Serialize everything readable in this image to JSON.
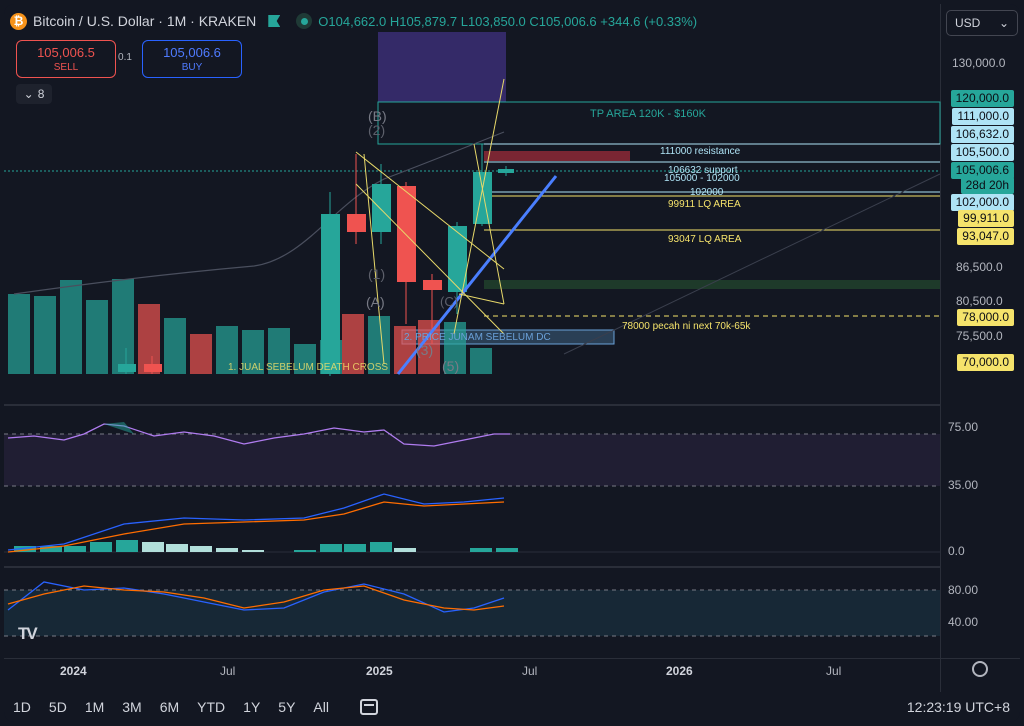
{
  "legend": {
    "title": "Bitcoin / U.S. Dollar · 1M · KRAKEN",
    "btc_glyph": "₿",
    "open": "O104,662.0",
    "high": "H105,879.7",
    "low": "L103,850.0",
    "close": "C105,006.6",
    "change": "+344.6 (+0.33%)"
  },
  "trade": {
    "sell_price": "105,006.5",
    "sell_label": "SELL",
    "buy_price": "105,006.6",
    "buy_label": "BUY",
    "spread": "0.1"
  },
  "collapse": {
    "chevron": "⌄",
    "count": "8"
  },
  "currency": {
    "value": "USD",
    "chevron": "⌄"
  },
  "colors": {
    "up": "#26a69a",
    "down": "#ef5350",
    "bg": "#131722",
    "buy": "#2962ff"
  },
  "price_axis": {
    "ticks": [
      "130,000.0",
      "86,500.0",
      "80,500.0",
      "75,500.0"
    ],
    "labels": [
      {
        "text": "120,000.0",
        "bg": "#26a69a"
      },
      {
        "text": "111,000.0",
        "bg": "#aee3f5"
      },
      {
        "text": "106,632.0",
        "bg": "#aee3f5"
      },
      {
        "text": "105,500.0",
        "bg": "#aee3f5"
      },
      {
        "text": "105,006.6",
        "bg": "#26a69a"
      },
      {
        "text": "28d 20h",
        "bg": "#26a69a"
      },
      {
        "text": "102,000.0",
        "bg": "#aee3f5"
      },
      {
        "text": "99,911.0",
        "bg": "#f5e36b"
      },
      {
        "text": "93,047.0",
        "bg": "#f5e36b"
      },
      {
        "text": "78,000.0",
        "bg": "#f5e36b"
      },
      {
        "text": "70,000.0",
        "bg": "#f5e36b"
      }
    ]
  },
  "annotations": {
    "tp_area": "TP AREA 120K - $160K",
    "resistance": "111000 resistance",
    "support": "106632 support",
    "range": "105000 - 102000",
    "lvl_102": "102000",
    "lq1": "99911 LQ AREA",
    "lq2": "93047 LQ AREA",
    "lvl78": "78000 pecah ni next 70k-65k",
    "note2": "2. PRICE JUNAM SEBELUM DC",
    "note1": "1. JUAL SEBELUM DEATH CROSS",
    "wave_B": "(B)",
    "wave_2": "(2)",
    "wave_1": "(1)",
    "wave_A": "(A)",
    "wave_3": "(3)",
    "wave_5": "(5)",
    "wave_C": "(C)"
  },
  "rsi": {
    "upper": "75.00",
    "lower": "35.00"
  },
  "macd": {
    "zero": "0.0"
  },
  "stoch": {
    "upper": "80.00",
    "lower": "40.00"
  },
  "time_axis": {
    "labels": [
      "2024",
      "Jul",
      "2025",
      "Jul",
      "2026",
      "Jul"
    ]
  },
  "timeframes": [
    "1D",
    "5D",
    "1M",
    "3M",
    "6M",
    "YTD",
    "1Y",
    "5Y",
    "All"
  ],
  "clock": "12:23:19 UTC+8",
  "logo": "TV"
}
